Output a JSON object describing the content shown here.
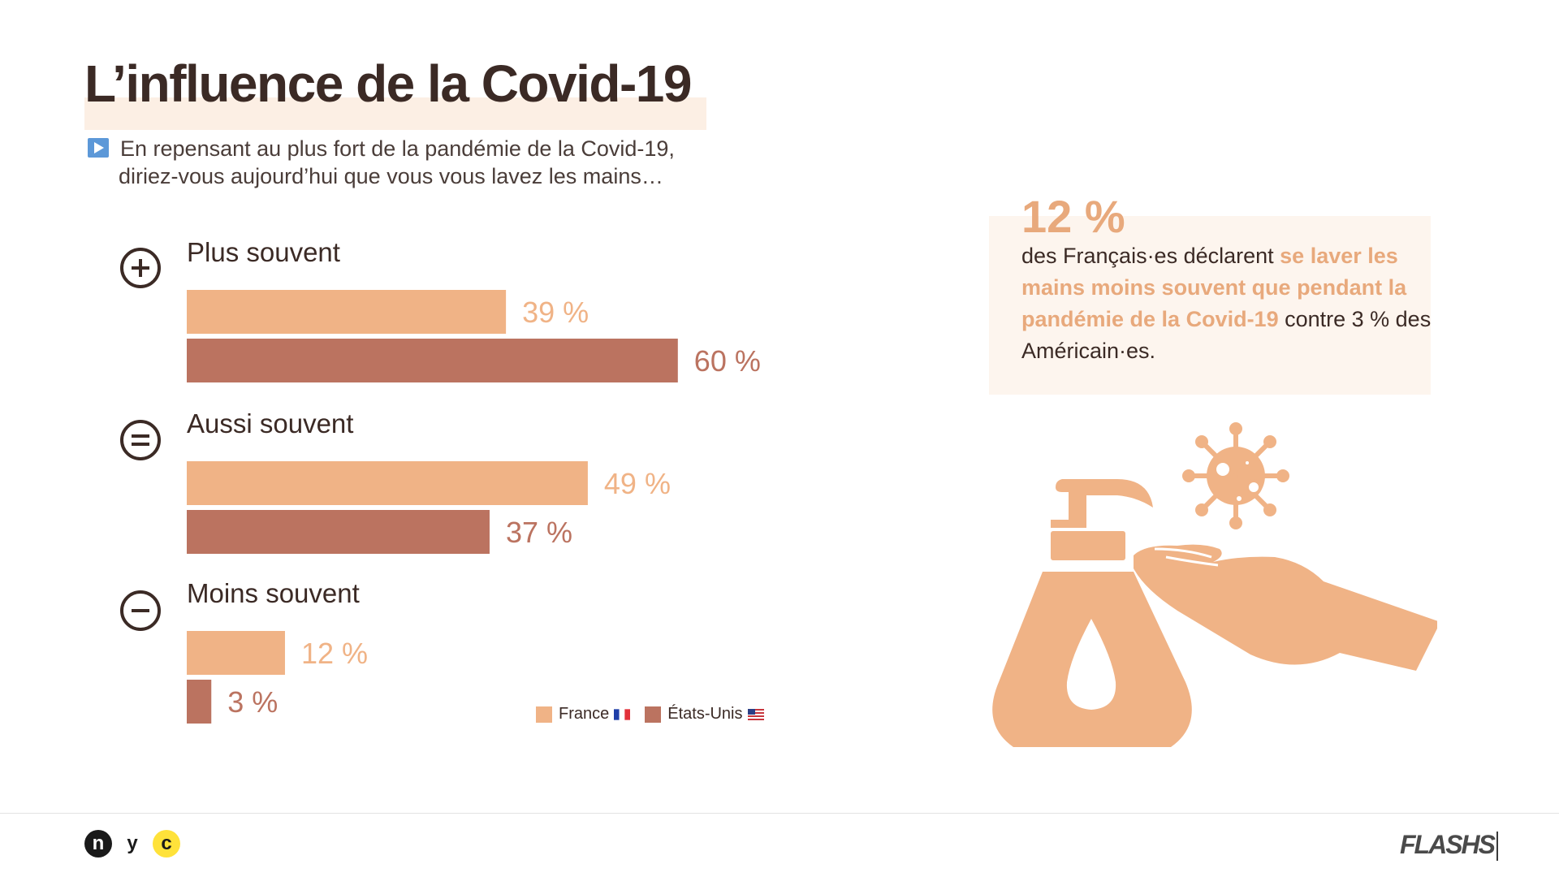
{
  "title": "L’influence de la Covid-19",
  "question": {
    "line1": "En repensant au plus fort de la pandémie de la Covid-19,",
    "line2": "diriez-vous aujourd’hui que vous vous lavez les mains…"
  },
  "colors": {
    "france": "#f0b386",
    "usa": "#bb7360",
    "accent": "#e8a97c",
    "text": "#3b2a25"
  },
  "chart_data": {
    "type": "bar",
    "orientation": "horizontal",
    "categories": [
      "Plus souvent",
      "Aussi souvent",
      "Moins souvent"
    ],
    "category_icons": [
      "plus-icon",
      "equals-icon",
      "minus-icon"
    ],
    "series": [
      {
        "name": "France",
        "values": [
          39,
          49,
          12
        ],
        "labels": [
          "39 %",
          "49 %",
          "12 %"
        ]
      },
      {
        "name": "États-Unis",
        "values": [
          60,
          37,
          3
        ],
        "labels": [
          "60 %",
          "37 %",
          "3 %"
        ]
      }
    ],
    "legend_placement": "bottom-right",
    "grid": false
  },
  "legend": {
    "france": "France",
    "usa": "États-Unis"
  },
  "callout": {
    "big": "12 %",
    "text_plain1": "des Français·es déclarent ",
    "text_highlight": "se laver les mains moins souvent que pendant la pandémie de la Covid-19",
    "text_plain2": " contre 3 % des Américain·es."
  },
  "footer": {
    "logo_n": "n",
    "logo_y": "y",
    "logo_c": "c",
    "brand": "FLASHS"
  }
}
